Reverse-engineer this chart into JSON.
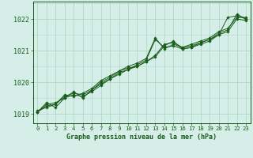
{
  "title": "Graphe pression niveau de la mer (hPa)",
  "background_color": "#d5eee8",
  "grid_color": "#b0d8c8",
  "line_color": "#1a5c1a",
  "marker_color": "#1a5c1a",
  "xlim": [
    -0.5,
    23.5
  ],
  "ylim": [
    1018.7,
    1022.55
  ],
  "yticks": [
    1019,
    1020,
    1021,
    1022
  ],
  "xticks": [
    0,
    1,
    2,
    3,
    4,
    5,
    6,
    7,
    8,
    9,
    10,
    11,
    12,
    13,
    14,
    15,
    16,
    17,
    18,
    19,
    20,
    21,
    22,
    23
  ],
  "series": [
    [
      1019.05,
      1019.35,
      1019.2,
      1019.5,
      1019.6,
      1019.55,
      1019.7,
      1019.9,
      1020.1,
      1020.3,
      1020.4,
      1020.55,
      1020.7,
      1021.35,
      1021.1,
      1021.15,
      1021.05,
      1021.1,
      1021.2,
      1021.3,
      1021.5,
      1022.05,
      1022.1,
      1022.0
    ],
    [
      1019.05,
      1019.25,
      1019.3,
      1019.55,
      1019.65,
      1019.6,
      1019.75,
      1020.0,
      1020.15,
      1020.35,
      1020.45,
      1020.5,
      1020.65,
      1020.85,
      1021.2,
      1021.25,
      1021.1,
      1021.15,
      1021.25,
      1021.35,
      1021.55,
      1021.65,
      1022.15,
      1022.0
    ],
    [
      1019.1,
      1019.2,
      1019.3,
      1019.6,
      1019.55,
      1019.65,
      1019.8,
      1020.05,
      1020.2,
      1020.35,
      1020.5,
      1020.6,
      1020.75,
      1021.4,
      1021.05,
      1021.2,
      1021.1,
      1021.2,
      1021.3,
      1021.4,
      1021.6,
      1021.7,
      1022.05,
      1022.05
    ],
    [
      1019.05,
      1019.3,
      1019.35,
      1019.5,
      1019.7,
      1019.5,
      1019.75,
      1019.95,
      1020.1,
      1020.25,
      1020.4,
      1020.5,
      1020.65,
      1020.8,
      1021.15,
      1021.3,
      1021.05,
      1021.1,
      1021.25,
      1021.35,
      1021.5,
      1021.6,
      1022.0,
      1021.95
    ]
  ]
}
